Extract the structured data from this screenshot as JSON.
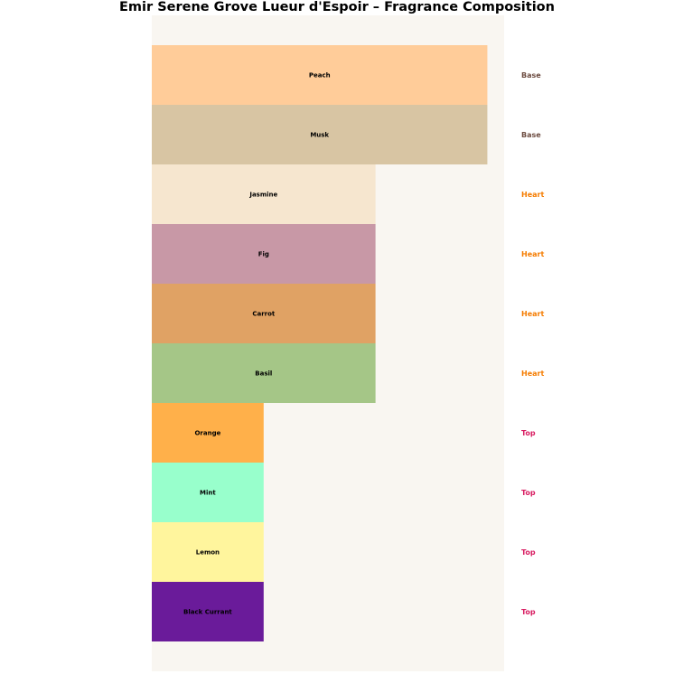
{
  "chart_data": {
    "type": "bar",
    "orientation": "horizontal",
    "title": "Emir Serene Grove Lueur d'Espoir – Fragrance Composition",
    "xlabel": "",
    "ylabel": "",
    "xlim": [
      0,
      3.15
    ],
    "grid": false,
    "axes_visible": false,
    "plot_background": "#f9f6f1",
    "bars": [
      {
        "label": "Peach",
        "value": 3,
        "layer": "Base",
        "color": "#ffcc99"
      },
      {
        "label": "Musk",
        "value": 3,
        "layer": "Base",
        "color": "#d8c5a3"
      },
      {
        "label": "Jasmine",
        "value": 2,
        "layer": "Heart",
        "color": "#f6e6cf"
      },
      {
        "label": "Fig",
        "value": 2,
        "layer": "Heart",
        "color": "#c898a6"
      },
      {
        "label": "Carrot",
        "value": 2,
        "layer": "Heart",
        "color": "#e0a264"
      },
      {
        "label": "Basil",
        "value": 2,
        "layer": "Heart",
        "color": "#a5c687"
      },
      {
        "label": "Orange",
        "value": 1,
        "layer": "Top",
        "color": "#ffb04a"
      },
      {
        "label": "Mint",
        "value": 1,
        "layer": "Top",
        "color": "#98ffcc"
      },
      {
        "label": "Lemon",
        "value": 1,
        "layer": "Top",
        "color": "#fff59d"
      },
      {
        "label": "Black Currant",
        "value": 1,
        "layer": "Top",
        "color": "#6a1b9a"
      }
    ],
    "layer_colors": {
      "Base": "#6d4c41",
      "Heart": "#f57c00",
      "Top": "#d81b60"
    }
  }
}
